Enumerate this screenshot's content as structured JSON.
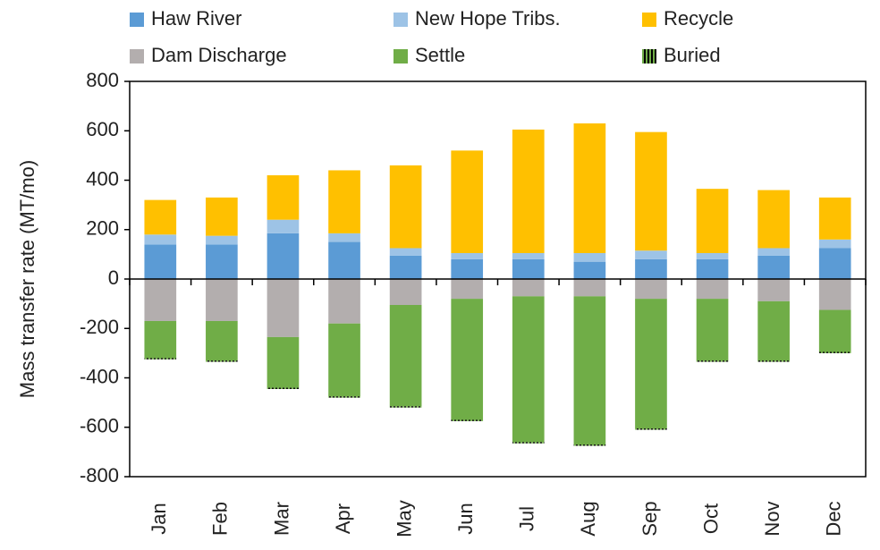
{
  "chart_data": {
    "type": "stacked_bar",
    "y_label": "Mass transfer rate (MT/mo)",
    "categories": [
      "Jan",
      "Feb",
      "Mar",
      "Apr",
      "May",
      "Jun",
      "Jul",
      "Aug",
      "Sep",
      "Oct",
      "Nov",
      "Dec"
    ],
    "ylim": [
      -800,
      800
    ],
    "yticks": [
      -800,
      -600,
      -400,
      -200,
      0,
      200,
      400,
      600,
      800
    ],
    "legend": "top",
    "series": [
      {
        "name": "Haw River",
        "color": "#5b9bd5",
        "values": [
          140,
          140,
          185,
          150,
          95,
          80,
          80,
          70,
          80,
          80,
          95,
          125
        ]
      },
      {
        "name": "New Hope Tribs.",
        "color": "#9dc3e6",
        "values": [
          40,
          35,
          55,
          35,
          30,
          25,
          25,
          35,
          35,
          25,
          30,
          35
        ]
      },
      {
        "name": "Recycle",
        "color": "#ffc000",
        "values": [
          140,
          155,
          180,
          255,
          335,
          415,
          500,
          525,
          480,
          260,
          235,
          170
        ]
      },
      {
        "name": "Dam Discharge",
        "color": "#b3aeae",
        "values": [
          -170,
          -170,
          -235,
          -180,
          -105,
          -80,
          -70,
          -70,
          -80,
          -80,
          -90,
          -125
        ]
      },
      {
        "name": "Settle",
        "color": "#70ad47",
        "values": [
          -150,
          -160,
          -205,
          -295,
          -410,
          -490,
          -590,
          -600,
          -525,
          -250,
          -240,
          -170
        ]
      },
      {
        "name": "Buried",
        "color": "#000000",
        "values": [
          -5,
          -5,
          -5,
          -5,
          -5,
          -5,
          -5,
          -5,
          -5,
          -5,
          -5,
          -5
        ]
      }
    ]
  }
}
